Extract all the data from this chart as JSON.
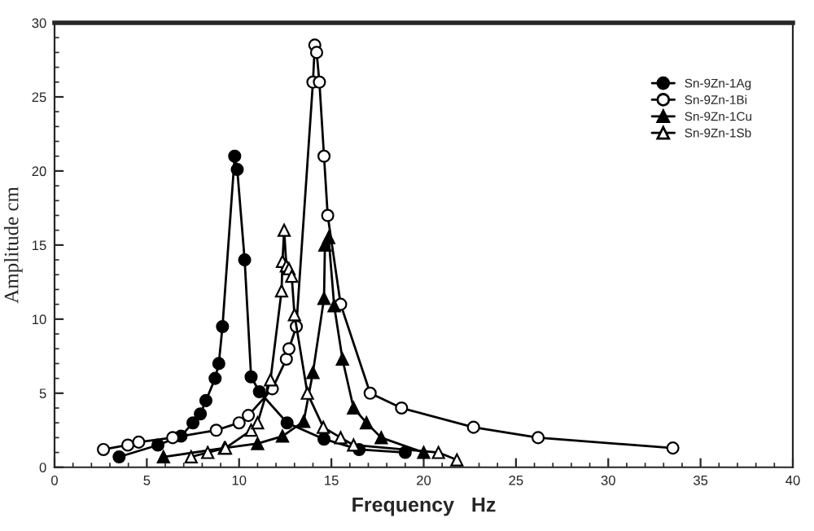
{
  "chart_data": {
    "type": "line",
    "xlabel": "Frequency   Hz",
    "ylabel": "Amplitude cm",
    "xlim": [
      0,
      40
    ],
    "xticks": [
      0,
      5,
      10,
      15,
      20,
      25,
      30,
      35,
      40
    ],
    "ylim": [
      0,
      30
    ],
    "yticks": [
      0,
      5,
      10,
      15,
      20,
      25,
      30
    ],
    "line_style": "solid",
    "legend": "top right",
    "grid": false,
    "series": [
      {
        "name": "Sn-9Zn-1Ag",
        "color": "#000000",
        "marker": "circle",
        "x": [
          3.5,
          5.6,
          6.85,
          7.5,
          7.9,
          8.2,
          8.7,
          8.9,
          9.1,
          9.76,
          9.9,
          10.3,
          10.65,
          11.1,
          12.6,
          14.6,
          16.5,
          19.0
        ],
        "values": [
          0.7,
          1.5,
          2.1,
          3.0,
          3.6,
          4.5,
          6.0,
          7.0,
          9.5,
          21.0,
          20.1,
          14.0,
          6.1,
          5.1,
          3.0,
          1.9,
          1.2,
          1.0
        ]
      },
      {
        "name": "Sn-9Zn-1Bi",
        "color": "#000000",
        "marker": "circle",
        "x": [
          2.65,
          3.97,
          4.56,
          6.4,
          8.76,
          10.0,
          10.5,
          11.8,
          12.56,
          12.7,
          13.1,
          14.0,
          14.1,
          14.2,
          14.35,
          14.6,
          14.8,
          15.5,
          17.1,
          18.8,
          22.7,
          26.2,
          33.5
        ],
        "values": [
          1.2,
          1.5,
          1.7,
          2.0,
          2.5,
          3.0,
          3.5,
          5.3,
          7.3,
          8.0,
          9.5,
          26.0,
          28.5,
          28.0,
          26.0,
          21.0,
          17.0,
          11.0,
          5.0,
          4.0,
          2.7,
          2.0,
          1.3
        ]
      },
      {
        "name": "Sn-9Zn-1Cu",
        "color": "#000000",
        "marker": "triangle",
        "x": [
          5.9,
          9.2,
          11.0,
          12.35,
          13.5,
          14.0,
          14.6,
          14.65,
          14.85,
          15.15,
          15.6,
          16.2,
          16.9,
          17.7,
          20.0
        ],
        "values": [
          0.7,
          1.3,
          1.6,
          2.1,
          3.1,
          6.4,
          11.4,
          15.0,
          15.5,
          10.9,
          7.3,
          4.0,
          3.0,
          2.0,
          1.0
        ]
      },
      {
        "name": "Sn-9Zn-1Sb",
        "color": "#000000",
        "marker": "triangle",
        "x": [
          7.4,
          8.3,
          9.26,
          10.65,
          11.0,
          11.7,
          12.3,
          12.35,
          12.44,
          12.56,
          12.7,
          12.85,
          13.0,
          13.7,
          14.56,
          15.5,
          16.2,
          20.8,
          21.8
        ],
        "values": [
          0.7,
          1.0,
          1.3,
          2.5,
          3.0,
          5.9,
          11.9,
          13.9,
          16.0,
          13.6,
          13.4,
          12.9,
          10.3,
          5.0,
          2.7,
          2.0,
          1.5,
          1.0,
          0.5
        ]
      }
    ]
  }
}
